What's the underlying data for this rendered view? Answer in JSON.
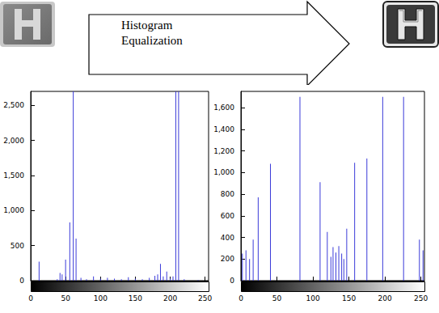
{
  "diagram": {
    "arrow_label": "Histogram Equalization"
  },
  "chart_data": [
    {
      "type": "bar",
      "color": "#3b3bd9",
      "x": [
        12,
        38,
        42,
        45,
        50,
        56,
        61,
        65,
        72,
        80,
        90,
        100,
        110,
        120,
        130,
        140,
        150,
        160,
        170,
        178,
        182,
        186,
        190,
        195,
        200,
        204,
        208,
        212,
        220,
        240
      ],
      "values": [
        270,
        20,
        110,
        90,
        300,
        830,
        2700,
        600,
        40,
        20,
        60,
        30,
        40,
        30,
        20,
        50,
        30,
        20,
        40,
        70,
        90,
        240,
        60,
        130,
        30,
        60,
        2700,
        2700,
        20,
        10
      ],
      "xlim": [
        0,
        255
      ],
      "xticks": [
        0,
        50,
        100,
        150,
        200,
        250
      ],
      "ylim": [
        0,
        2700
      ],
      "yticks": [
        0,
        500,
        1000,
        1500,
        2000,
        2500
      ]
    },
    {
      "type": "bar",
      "color": "#3b3bd9",
      "x": [
        2,
        7,
        12,
        17,
        24,
        41,
        82,
        110,
        120,
        125,
        128,
        132,
        136,
        140,
        143,
        147,
        158,
        175,
        197,
        226,
        248,
        253
      ],
      "values": [
        250,
        280,
        200,
        380,
        770,
        1080,
        1700,
        910,
        450,
        220,
        310,
        260,
        320,
        250,
        200,
        480,
        1090,
        1130,
        1700,
        1700,
        380,
        280
      ],
      "xlim": [
        0,
        255
      ],
      "xticks": [
        0,
        50,
        100,
        150,
        200,
        250
      ],
      "ylim": [
        0,
        1750
      ],
      "yticks": [
        0,
        200,
        400,
        600,
        800,
        1000,
        1200,
        1400,
        1600
      ]
    }
  ]
}
